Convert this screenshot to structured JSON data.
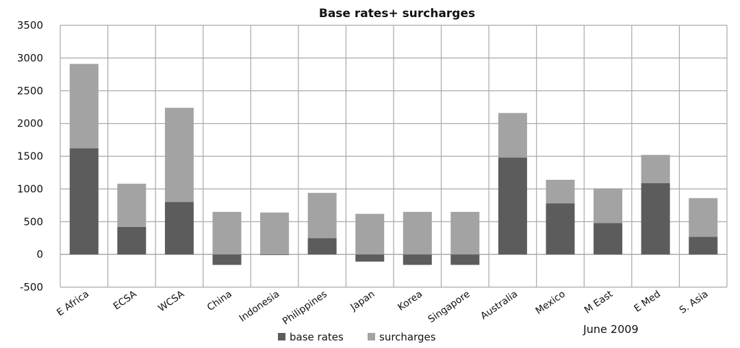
{
  "chart_data": {
    "type": "bar",
    "stacked": true,
    "title": "Base rates+ surcharges",
    "xlabel": "",
    "ylabel": "",
    "ylim": [
      -500,
      3500
    ],
    "yticks": [
      -500,
      0,
      500,
      1000,
      1500,
      2000,
      2500,
      3000,
      3500
    ],
    "grid": true,
    "categories": [
      "E Africa",
      "ECSA",
      "WCSA",
      "China",
      "Indonesia",
      "Philippines",
      "Japan",
      "Korea",
      "Singapore",
      "Australia",
      "Mexico",
      "M East",
      "E Med",
      "S. Asia"
    ],
    "series": [
      {
        "name": "base rates",
        "color": "#5c5c5c",
        "values": [
          1620,
          420,
          800,
          -160,
          -10,
          250,
          -110,
          -160,
          -160,
          1480,
          780,
          480,
          1090,
          270
        ]
      },
      {
        "name": "surcharges",
        "color": "#a3a3a3",
        "values": [
          1290,
          660,
          1440,
          650,
          640,
          690,
          620,
          650,
          650,
          680,
          360,
          530,
          430,
          590
        ]
      }
    ],
    "legend_position": "bottom",
    "annotation": "June 2009"
  }
}
